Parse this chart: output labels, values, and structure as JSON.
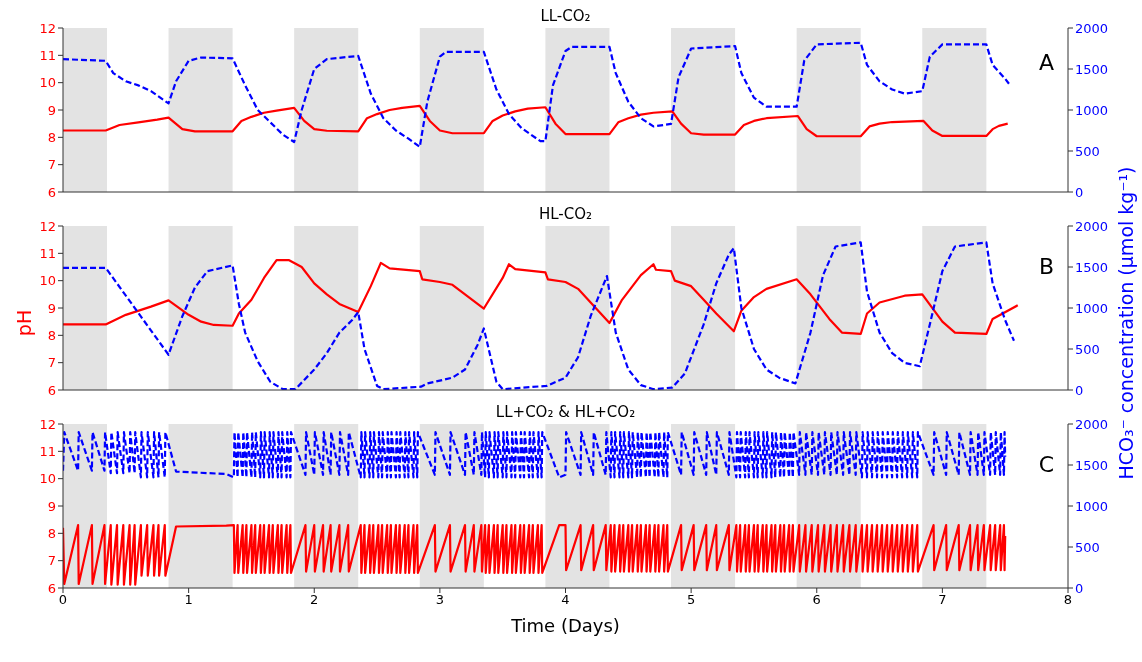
{
  "chart_data": [
    {
      "type": "line",
      "title": "LL-CO₂",
      "annotations": [
        "A"
      ],
      "tick_labels": "y",
      "xlim": [
        0,
        8
      ],
      "xticks": [
        0,
        1,
        2,
        3,
        4,
        5,
        6,
        7,
        8
      ],
      "ylim": [
        6,
        12
      ],
      "yticks": [
        6,
        7,
        8,
        9,
        10,
        11,
        12
      ],
      "y2lim": [
        0,
        2000
      ],
      "y2ticks": [
        0,
        500,
        1000,
        1500,
        2000
      ],
      "bands": [
        {
          "axis": "x",
          "from": 0,
          "to": 0.35,
          "color": "#e3e3e3"
        },
        {
          "axis": "x",
          "from": 0.84,
          "to": 1.35,
          "color": "#e3e3e3"
        },
        {
          "axis": "x",
          "from": 1.84,
          "to": 2.35,
          "color": "#e3e3e3"
        },
        {
          "axis": "x",
          "from": 2.84,
          "to": 3.35,
          "color": "#e3e3e3"
        },
        {
          "axis": "x",
          "from": 3.84,
          "to": 4.35,
          "color": "#e3e3e3"
        },
        {
          "axis": "x",
          "from": 4.84,
          "to": 5.35,
          "color": "#e3e3e3"
        },
        {
          "axis": "x",
          "from": 5.84,
          "to": 6.35,
          "color": "#e3e3e3"
        },
        {
          "axis": "x",
          "from": 6.84,
          "to": 7.35,
          "color": "#e3e3e3"
        }
      ],
      "series": [
        {
          "color": "#ff0000",
          "line_style": "solid",
          "x": [
            0,
            0.34,
            0.45,
            0.6,
            0.75,
            0.84,
            0.95,
            1.05,
            1.35,
            1.42,
            1.5,
            1.6,
            1.7,
            1.84,
            1.92,
            2.0,
            2.1,
            2.35,
            2.42,
            2.5,
            2.6,
            2.7,
            2.84,
            2.92,
            3.0,
            3.1,
            3.35,
            3.42,
            3.5,
            3.6,
            3.7,
            3.84,
            3.92,
            4.0,
            4.35,
            4.42,
            4.5,
            4.6,
            4.7,
            4.85,
            4.92,
            5.0,
            5.1,
            5.35,
            5.42,
            5.5,
            5.6,
            5.85,
            5.92,
            6.0,
            6.35,
            6.42,
            6.5,
            6.6,
            6.85,
            6.92,
            7.0,
            7.35,
            7.4,
            7.45,
            7.52
          ],
          "values": [
            8.25,
            8.25,
            8.45,
            8.55,
            8.65,
            8.72,
            8.3,
            8.22,
            8.22,
            8.6,
            8.75,
            8.9,
            8.98,
            9.08,
            8.6,
            8.3,
            8.24,
            8.22,
            8.7,
            8.85,
            9.0,
            9.08,
            9.15,
            8.6,
            8.25,
            8.15,
            8.15,
            8.6,
            8.8,
            8.95,
            9.05,
            9.1,
            8.5,
            8.12,
            8.12,
            8.55,
            8.7,
            8.83,
            8.9,
            8.95,
            8.5,
            8.15,
            8.1,
            8.1,
            8.45,
            8.6,
            8.7,
            8.78,
            8.3,
            8.04,
            8.04,
            8.4,
            8.5,
            8.56,
            8.6,
            8.25,
            8.05,
            8.05,
            8.3,
            8.42,
            8.5
          ]
        },
        {
          "color": "#0000ff",
          "line_style": "dashed",
          "axis": "y2",
          "x": [
            0,
            0.34,
            0.4,
            0.5,
            0.6,
            0.7,
            0.84,
            0.9,
            1.0,
            1.1,
            1.35,
            1.45,
            1.55,
            1.65,
            1.75,
            1.84,
            1.9,
            2.0,
            2.1,
            2.35,
            2.45,
            2.55,
            2.65,
            2.75,
            2.84,
            2.9,
            3.0,
            3.05,
            3.35,
            3.45,
            3.55,
            3.65,
            3.8,
            3.84,
            3.9,
            4.0,
            4.05,
            4.35,
            4.4,
            4.5,
            4.6,
            4.7,
            4.84,
            4.9,
            5.0,
            5.35,
            5.4,
            5.5,
            5.6,
            5.84,
            5.9,
            6.0,
            6.35,
            6.4,
            6.5,
            6.6,
            6.7,
            6.84,
            6.9,
            7.0,
            7.35,
            7.4,
            7.5,
            7.53
          ],
          "values": [
            1620,
            1600,
            1450,
            1350,
            1300,
            1230,
            1080,
            1350,
            1600,
            1640,
            1630,
            1300,
            1000,
            850,
            700,
            610,
            1000,
            1500,
            1620,
            1660,
            1200,
            900,
            750,
            650,
            550,
            1100,
            1650,
            1710,
            1710,
            1250,
            950,
            780,
            620,
            620,
            1300,
            1720,
            1770,
            1770,
            1450,
            1100,
            900,
            800,
            830,
            1400,
            1750,
            1780,
            1450,
            1150,
            1040,
            1040,
            1600,
            1800,
            1820,
            1550,
            1350,
            1250,
            1200,
            1230,
            1650,
            1800,
            1800,
            1550,
            1380,
            1320
          ]
        }
      ]
    },
    {
      "type": "line",
      "title": "HL-CO₂",
      "annotations": [
        "B"
      ],
      "tick_labels": "y",
      "ylabel": "pH",
      "y2label": "HCO₃⁻ concentration (μmol kg⁻¹)",
      "xlim": [
        0,
        8
      ],
      "xticks": [
        0,
        1,
        2,
        3,
        4,
        5,
        6,
        7,
        8
      ],
      "ylim": [
        6,
        12
      ],
      "yticks": [
        6,
        7,
        8,
        9,
        10,
        11,
        12
      ],
      "y2lim": [
        0,
        2000
      ],
      "y2ticks": [
        0,
        500,
        1000,
        1500,
        2000
      ],
      "bands": [
        {
          "axis": "x",
          "from": 0,
          "to": 0.35,
          "color": "#e3e3e3"
        },
        {
          "axis": "x",
          "from": 0.84,
          "to": 1.35,
          "color": "#e3e3e3"
        },
        {
          "axis": "x",
          "from": 1.84,
          "to": 2.35,
          "color": "#e3e3e3"
        },
        {
          "axis": "x",
          "from": 2.84,
          "to": 3.35,
          "color": "#e3e3e3"
        },
        {
          "axis": "x",
          "from": 3.84,
          "to": 4.35,
          "color": "#e3e3e3"
        },
        {
          "axis": "x",
          "from": 4.84,
          "to": 5.35,
          "color": "#e3e3e3"
        },
        {
          "axis": "x",
          "from": 5.84,
          "to": 6.35,
          "color": "#e3e3e3"
        },
        {
          "axis": "x",
          "from": 6.84,
          "to": 7.35,
          "color": "#e3e3e3"
        }
      ],
      "series": [
        {
          "color": "#ff0000",
          "line_style": "solid",
          "x": [
            0,
            0.34,
            0.5,
            0.7,
            0.84,
            1.0,
            1.1,
            1.2,
            1.35,
            1.4,
            1.5,
            1.6,
            1.7,
            1.8,
            1.9,
            2.0,
            2.1,
            2.2,
            2.35,
            2.45,
            2.53,
            2.6,
            2.84,
            2.86,
            3.0,
            3.1,
            3.2,
            3.35,
            3.5,
            3.55,
            3.6,
            3.84,
            3.86,
            4.0,
            4.1,
            4.2,
            4.35,
            4.45,
            4.6,
            4.7,
            4.72,
            4.84,
            4.87,
            5.0,
            5.1,
            5.2,
            5.34,
            5.4,
            5.5,
            5.6,
            5.84,
            5.95,
            6.1,
            6.2,
            6.35,
            6.4,
            6.5,
            6.7,
            6.84,
            7.0,
            7.1,
            7.35,
            7.4,
            7.6
          ],
          "values": [
            8.4,
            8.4,
            8.75,
            9.05,
            9.28,
            8.75,
            8.5,
            8.38,
            8.35,
            8.8,
            9.3,
            10.1,
            10.75,
            10.75,
            10.5,
            9.9,
            9.5,
            9.15,
            8.85,
            9.8,
            10.65,
            10.45,
            10.35,
            10.05,
            9.95,
            9.85,
            9.5,
            8.98,
            10.1,
            10.6,
            10.42,
            10.3,
            10.05,
            9.95,
            9.7,
            9.2,
            8.45,
            9.3,
            10.2,
            10.6,
            10.4,
            10.35,
            10.0,
            9.8,
            9.3,
            8.8,
            8.15,
            8.9,
            9.4,
            9.7,
            10.05,
            9.5,
            8.6,
            8.1,
            8.05,
            8.8,
            9.2,
            9.45,
            9.5,
            8.5,
            8.1,
            8.05,
            8.6,
            9.1
          ]
        },
        {
          "color": "#0000ff",
          "line_style": "dashed",
          "axis": "y2",
          "x": [
            0,
            0.34,
            0.84,
            0.95,
            1.05,
            1.15,
            1.35,
            1.4,
            1.45,
            1.55,
            1.65,
            1.75,
            1.85,
            2.0,
            2.1,
            2.2,
            2.3,
            2.35,
            2.4,
            2.5,
            2.55,
            2.85,
            2.9,
            3.1,
            3.2,
            3.3,
            3.35,
            3.45,
            3.5,
            3.85,
            4.0,
            4.1,
            4.2,
            4.33,
            4.4,
            4.5,
            4.6,
            4.7,
            4.85,
            4.95,
            5.1,
            5.2,
            5.3,
            5.34,
            5.4,
            5.5,
            5.6,
            5.7,
            5.83,
            5.95,
            6.05,
            6.15,
            6.35,
            6.4,
            6.5,
            6.6,
            6.7,
            6.82,
            6.9,
            7.0,
            7.1,
            7.35,
            7.4,
            7.5,
            7.57
          ],
          "values": [
            1490,
            1490,
            430,
            900,
            1250,
            1450,
            1520,
            1050,
            700,
            350,
            100,
            10,
            10,
            250,
            450,
            700,
            850,
            950,
            500,
            50,
            10,
            40,
            80,
            150,
            250,
            550,
            750,
            100,
            10,
            50,
            150,
            400,
            900,
            1390,
            700,
            250,
            60,
            10,
            30,
            200,
            800,
            1300,
            1650,
            1730,
            1000,
            500,
            250,
            150,
            80,
            700,
            1400,
            1750,
            1800,
            1200,
            700,
            450,
            330,
            290,
            800,
            1450,
            1750,
            1800,
            1300,
            850,
            600
          ]
        }
      ]
    },
    {
      "type": "line",
      "title": "LL+CO₂ & HL+CO₂",
      "annotations": [
        "C"
      ],
      "xlabel": "Time (Days)",
      "xlim": [
        0,
        8
      ],
      "xticks": [
        0,
        1,
        2,
        3,
        4,
        5,
        6,
        7,
        8
      ],
      "ylim": [
        6,
        12
      ],
      "yticks": [
        6,
        7,
        8,
        9,
        10,
        11,
        12
      ],
      "y2lim": [
        0,
        2000
      ],
      "y2ticks": [
        0,
        500,
        1000,
        1500,
        2000
      ],
      "bands": [
        {
          "axis": "x",
          "from": 0,
          "to": 0.35,
          "color": "#e3e3e3"
        },
        {
          "axis": "x",
          "from": 0.84,
          "to": 1.35,
          "color": "#e3e3e3"
        },
        {
          "axis": "x",
          "from": 1.84,
          "to": 2.35,
          "color": "#e3e3e3"
        },
        {
          "axis": "x",
          "from": 2.84,
          "to": 3.35,
          "color": "#e3e3e3"
        },
        {
          "axis": "x",
          "from": 3.84,
          "to": 4.35,
          "color": "#e3e3e3"
        },
        {
          "axis": "x",
          "from": 4.84,
          "to": 5.35,
          "color": "#e3e3e3"
        },
        {
          "axis": "x",
          "from": 5.84,
          "to": 6.35,
          "color": "#e3e3e3"
        },
        {
          "axis": "x",
          "from": 6.84,
          "to": 7.35,
          "color": "#e3e3e3"
        }
      ],
      "x": [
        0,
        0.01,
        0.12,
        0.125,
        0.23,
        0.235,
        0.33,
        0.335,
        0.38,
        0.385,
        0.43,
        0.435,
        0.48,
        0.485,
        0.53,
        0.535,
        0.57,
        0.575,
        0.62,
        0.625,
        0.67,
        0.675,
        0.72,
        0.725,
        0.76,
        0.765,
        0.81,
        0.815,
        0.9,
        1.3,
        1.36,
        1.365,
        1.39,
        1.395,
        1.43,
        1.435,
        1.46,
        1.465,
        1.5,
        1.505,
        1.53,
        1.535,
        1.57,
        1.575,
        1.6,
        1.605,
        1.64,
        1.645,
        1.67,
        1.675,
        1.71,
        1.715,
        1.74,
        1.745,
        1.78,
        1.785,
        1.81,
        1.815,
        1.93,
        1.935,
        2,
        2.005,
        2.07,
        2.075,
        2.13,
        2.135,
        2.2,
        2.205,
        2.27,
        2.275,
        2.37,
        2.375,
        2.4,
        2.405,
        2.44,
        2.445,
        2.47,
        2.475,
        2.51,
        2.515,
        2.54,
        2.545,
        2.58,
        2.585,
        2.61,
        2.615,
        2.65,
        2.655,
        2.68,
        2.685,
        2.72,
        2.725,
        2.75,
        2.755,
        2.79,
        2.795,
        2.82,
        2.825,
        2.96,
        2.965,
        3.08,
        3.085,
        3.2,
        3.205,
        3.27,
        3.275,
        3.33,
        3.335,
        3.36,
        3.365,
        3.39,
        3.395,
        3.43,
        3.435,
        3.46,
        3.465,
        3.5,
        3.505,
        3.53,
        3.535,
        3.57,
        3.575,
        3.6,
        3.605,
        3.64,
        3.645,
        3.67,
        3.675,
        3.71,
        3.715,
        3.74,
        3.745,
        3.78,
        3.785,
        3.81,
        3.815,
        3.95,
        4,
        4.005,
        4.12,
        4.125,
        4.22,
        4.225,
        4.32,
        4.325,
        4.36,
        4.365,
        4.39,
        4.395,
        4.43,
        4.435,
        4.46,
        4.465,
        4.5,
        4.505,
        4.53,
        4.535,
        4.57,
        4.575,
        4.6,
        4.605,
        4.64,
        4.645,
        4.67,
        4.675,
        4.71,
        4.715,
        4.74,
        4.745,
        4.78,
        4.785,
        4.81,
        4.815,
        4.92,
        4.925,
        5.02,
        5.025,
        5.12,
        5.125,
        5.2,
        5.205,
        5.3,
        5.305,
        5.36,
        5.365,
        5.39,
        5.395,
        5.43,
        5.435,
        5.46,
        5.465,
        5.5,
        5.505,
        5.53,
        5.535,
        5.57,
        5.575,
        5.6,
        5.605,
        5.64,
        5.645,
        5.67,
        5.675,
        5.71,
        5.715,
        5.74,
        5.745,
        5.78,
        5.785,
        5.81,
        5.815,
        5.86,
        5.865,
        5.91,
        5.915,
        5.96,
        5.965,
        6.01,
        6.015,
        6.06,
        6.065,
        6.11,
        6.115,
        6.16,
        6.165,
        6.21,
        6.215,
        6.26,
        6.265,
        6.31,
        6.315,
        6.36,
        6.365,
        6.4,
        6.405,
        6.44,
        6.445,
        6.48,
        6.485,
        6.52,
        6.525,
        6.56,
        6.565,
        6.6,
        6.605,
        6.64,
        6.645,
        6.68,
        6.685,
        6.72,
        6.725,
        6.76,
        6.765,
        6.8,
        6.805,
        6.93,
        6.935,
        7.03,
        7.035,
        7.13,
        7.135,
        7.22,
        7.225,
        7.28,
        7.285,
        7.33,
        7.335,
        7.38,
        7.385,
        7.42,
        7.425,
        7.46,
        7.465,
        7.49,
        7.495,
        7.5
      ],
      "series": [
        {
          "color": "#ff0000",
          "line_style": "solid",
          "values": [
            8.2,
            6.15,
            8.3,
            6.15,
            8.3,
            6.15,
            8.3,
            6.15,
            8.3,
            6.12,
            8.3,
            6.12,
            8.3,
            6.12,
            8.3,
            6.12,
            8.3,
            6.12,
            8.3,
            6.45,
            8.3,
            6.45,
            8.3,
            6.45,
            8.3,
            6.45,
            8.3,
            6.45,
            8.25,
            8.28,
            8.3,
            6.55,
            8.3,
            6.55,
            8.3,
            6.55,
            8.3,
            6.55,
            8.3,
            6.55,
            8.3,
            6.55,
            8.3,
            6.55,
            8.3,
            6.55,
            8.3,
            6.55,
            8.3,
            6.55,
            8.3,
            6.55,
            8.3,
            6.55,
            8.3,
            6.55,
            8.3,
            6.55,
            8.3,
            6.6,
            8.3,
            6.6,
            8.3,
            6.6,
            8.3,
            6.6,
            8.3,
            6.6,
            8.3,
            6.6,
            8.3,
            6.55,
            8.3,
            6.55,
            8.3,
            6.55,
            8.3,
            6.55,
            8.3,
            6.55,
            8.3,
            6.55,
            8.3,
            6.55,
            8.3,
            6.55,
            8.3,
            6.55,
            8.3,
            6.55,
            8.3,
            6.55,
            8.3,
            6.55,
            8.3,
            6.55,
            8.3,
            6.55,
            8.3,
            6.6,
            8.3,
            6.6,
            8.3,
            6.6,
            8.3,
            6.6,
            8.3,
            6.6,
            8.3,
            6.55,
            8.3,
            6.55,
            8.3,
            6.55,
            8.3,
            6.55,
            8.3,
            6.55,
            8.3,
            6.55,
            8.3,
            6.55,
            8.3,
            6.55,
            8.3,
            6.55,
            8.3,
            6.55,
            8.3,
            6.55,
            8.3,
            6.55,
            8.3,
            6.55,
            8.3,
            6.55,
            8.3,
            8.3,
            6.65,
            8.3,
            6.65,
            8.3,
            6.65,
            8.3,
            6.65,
            8.3,
            6.6,
            8.3,
            6.6,
            8.3,
            6.6,
            8.3,
            6.6,
            8.3,
            6.6,
            8.3,
            6.6,
            8.3,
            6.6,
            8.3,
            6.6,
            8.3,
            6.6,
            8.3,
            6.6,
            8.3,
            6.6,
            8.3,
            6.6,
            8.3,
            6.6,
            8.3,
            6.6,
            8.3,
            6.65,
            8.3,
            6.65,
            8.3,
            6.65,
            8.3,
            6.65,
            8.3,
            6.65,
            8.3,
            6.6,
            8.3,
            6.6,
            8.3,
            6.6,
            8.3,
            6.6,
            8.3,
            6.6,
            8.3,
            6.6,
            8.3,
            6.6,
            8.3,
            6.6,
            8.3,
            6.6,
            8.3,
            6.6,
            8.3,
            6.6,
            8.3,
            6.6,
            8.3,
            6.6,
            8.3,
            6.6,
            8.3,
            6.6,
            8.3,
            6.6,
            8.3,
            6.6,
            8.3,
            6.6,
            8.3,
            6.6,
            8.3,
            6.6,
            8.3,
            6.6,
            8.3,
            6.6,
            8.3,
            6.6,
            8.3,
            6.6,
            8.3,
            6.6,
            8.3,
            6.6,
            8.3,
            6.6,
            8.3,
            6.6,
            8.3,
            6.6,
            8.3,
            6.6,
            8.3,
            6.6,
            8.3,
            6.6,
            8.3,
            6.6,
            8.3,
            6.6,
            8.3,
            6.6,
            8.3,
            6.6,
            8.3,
            6.65,
            8.3,
            6.65,
            8.3,
            6.65,
            8.3,
            6.65,
            8.3,
            6.65,
            8.3,
            6.65,
            8.3,
            6.65,
            8.3,
            6.65,
            8.3,
            6.65,
            8.3,
            6.65,
            7.9
          ]
        },
        {
          "color": "#0000ff",
          "line_style": "dashed",
          "axis": "y2",
          "values": [
            1430,
            1900,
            1430,
            1900,
            1430,
            1900,
            1430,
            1900,
            1400,
            1900,
            1400,
            1900,
            1400,
            1900,
            1400,
            1900,
            1400,
            1900,
            1350,
            1900,
            1350,
            1900,
            1350,
            1900,
            1350,
            1900,
            1350,
            1900,
            1420,
            1390,
            1350,
            1900,
            1350,
            1900,
            1350,
            1900,
            1350,
            1900,
            1350,
            1900,
            1350,
            1900,
            1350,
            1900,
            1350,
            1900,
            1350,
            1900,
            1350,
            1900,
            1350,
            1900,
            1350,
            1900,
            1350,
            1900,
            1350,
            1900,
            1380,
            1900,
            1380,
            1900,
            1380,
            1900,
            1380,
            1900,
            1380,
            1900,
            1380,
            1900,
            1350,
            1900,
            1350,
            1900,
            1350,
            1900,
            1350,
            1900,
            1350,
            1900,
            1350,
            1900,
            1350,
            1900,
            1350,
            1900,
            1350,
            1900,
            1350,
            1900,
            1350,
            1900,
            1350,
            1900,
            1350,
            1900,
            1350,
            1900,
            1380,
            1900,
            1380,
            1900,
            1380,
            1900,
            1380,
            1900,
            1380,
            1900,
            1350,
            1900,
            1350,
            1900,
            1350,
            1900,
            1350,
            1900,
            1350,
            1900,
            1350,
            1900,
            1350,
            1900,
            1350,
            1900,
            1350,
            1900,
            1350,
            1900,
            1350,
            1900,
            1350,
            1900,
            1350,
            1900,
            1350,
            1900,
            1350,
            1380,
            1900,
            1380,
            1900,
            1380,
            1900,
            1380,
            1900,
            1350,
            1900,
            1350,
            1900,
            1350,
            1900,
            1350,
            1900,
            1350,
            1900,
            1350,
            1900,
            1350,
            1900,
            1350,
            1900,
            1350,
            1900,
            1350,
            1900,
            1350,
            1900,
            1350,
            1900,
            1350,
            1900,
            1350,
            1900,
            1380,
            1900,
            1380,
            1900,
            1380,
            1900,
            1380,
            1900,
            1380,
            1900,
            1350,
            1900,
            1350,
            1900,
            1350,
            1900,
            1350,
            1900,
            1350,
            1900,
            1350,
            1900,
            1350,
            1900,
            1350,
            1900,
            1350,
            1900,
            1350,
            1900,
            1350,
            1900,
            1350,
            1900,
            1350,
            1900,
            1350,
            1900,
            1380,
            1900,
            1380,
            1900,
            1380,
            1900,
            1380,
            1900,
            1380,
            1900,
            1380,
            1900,
            1380,
            1900,
            1380,
            1900,
            1380,
            1900,
            1380,
            1900,
            1350,
            1900,
            1350,
            1900,
            1350,
            1900,
            1350,
            1900,
            1350,
            1900,
            1350,
            1900,
            1350,
            1900,
            1350,
            1900,
            1350,
            1900,
            1350,
            1900,
            1350,
            1900,
            1350,
            1900,
            1380,
            1900,
            1380,
            1900,
            1380,
            1900,
            1380,
            1900,
            1380,
            1900,
            1380,
            1900,
            1380,
            1900,
            1380,
            1900,
            1380,
            1900,
            1380,
            1900,
            1600
          ]
        }
      ]
    }
  ]
}
